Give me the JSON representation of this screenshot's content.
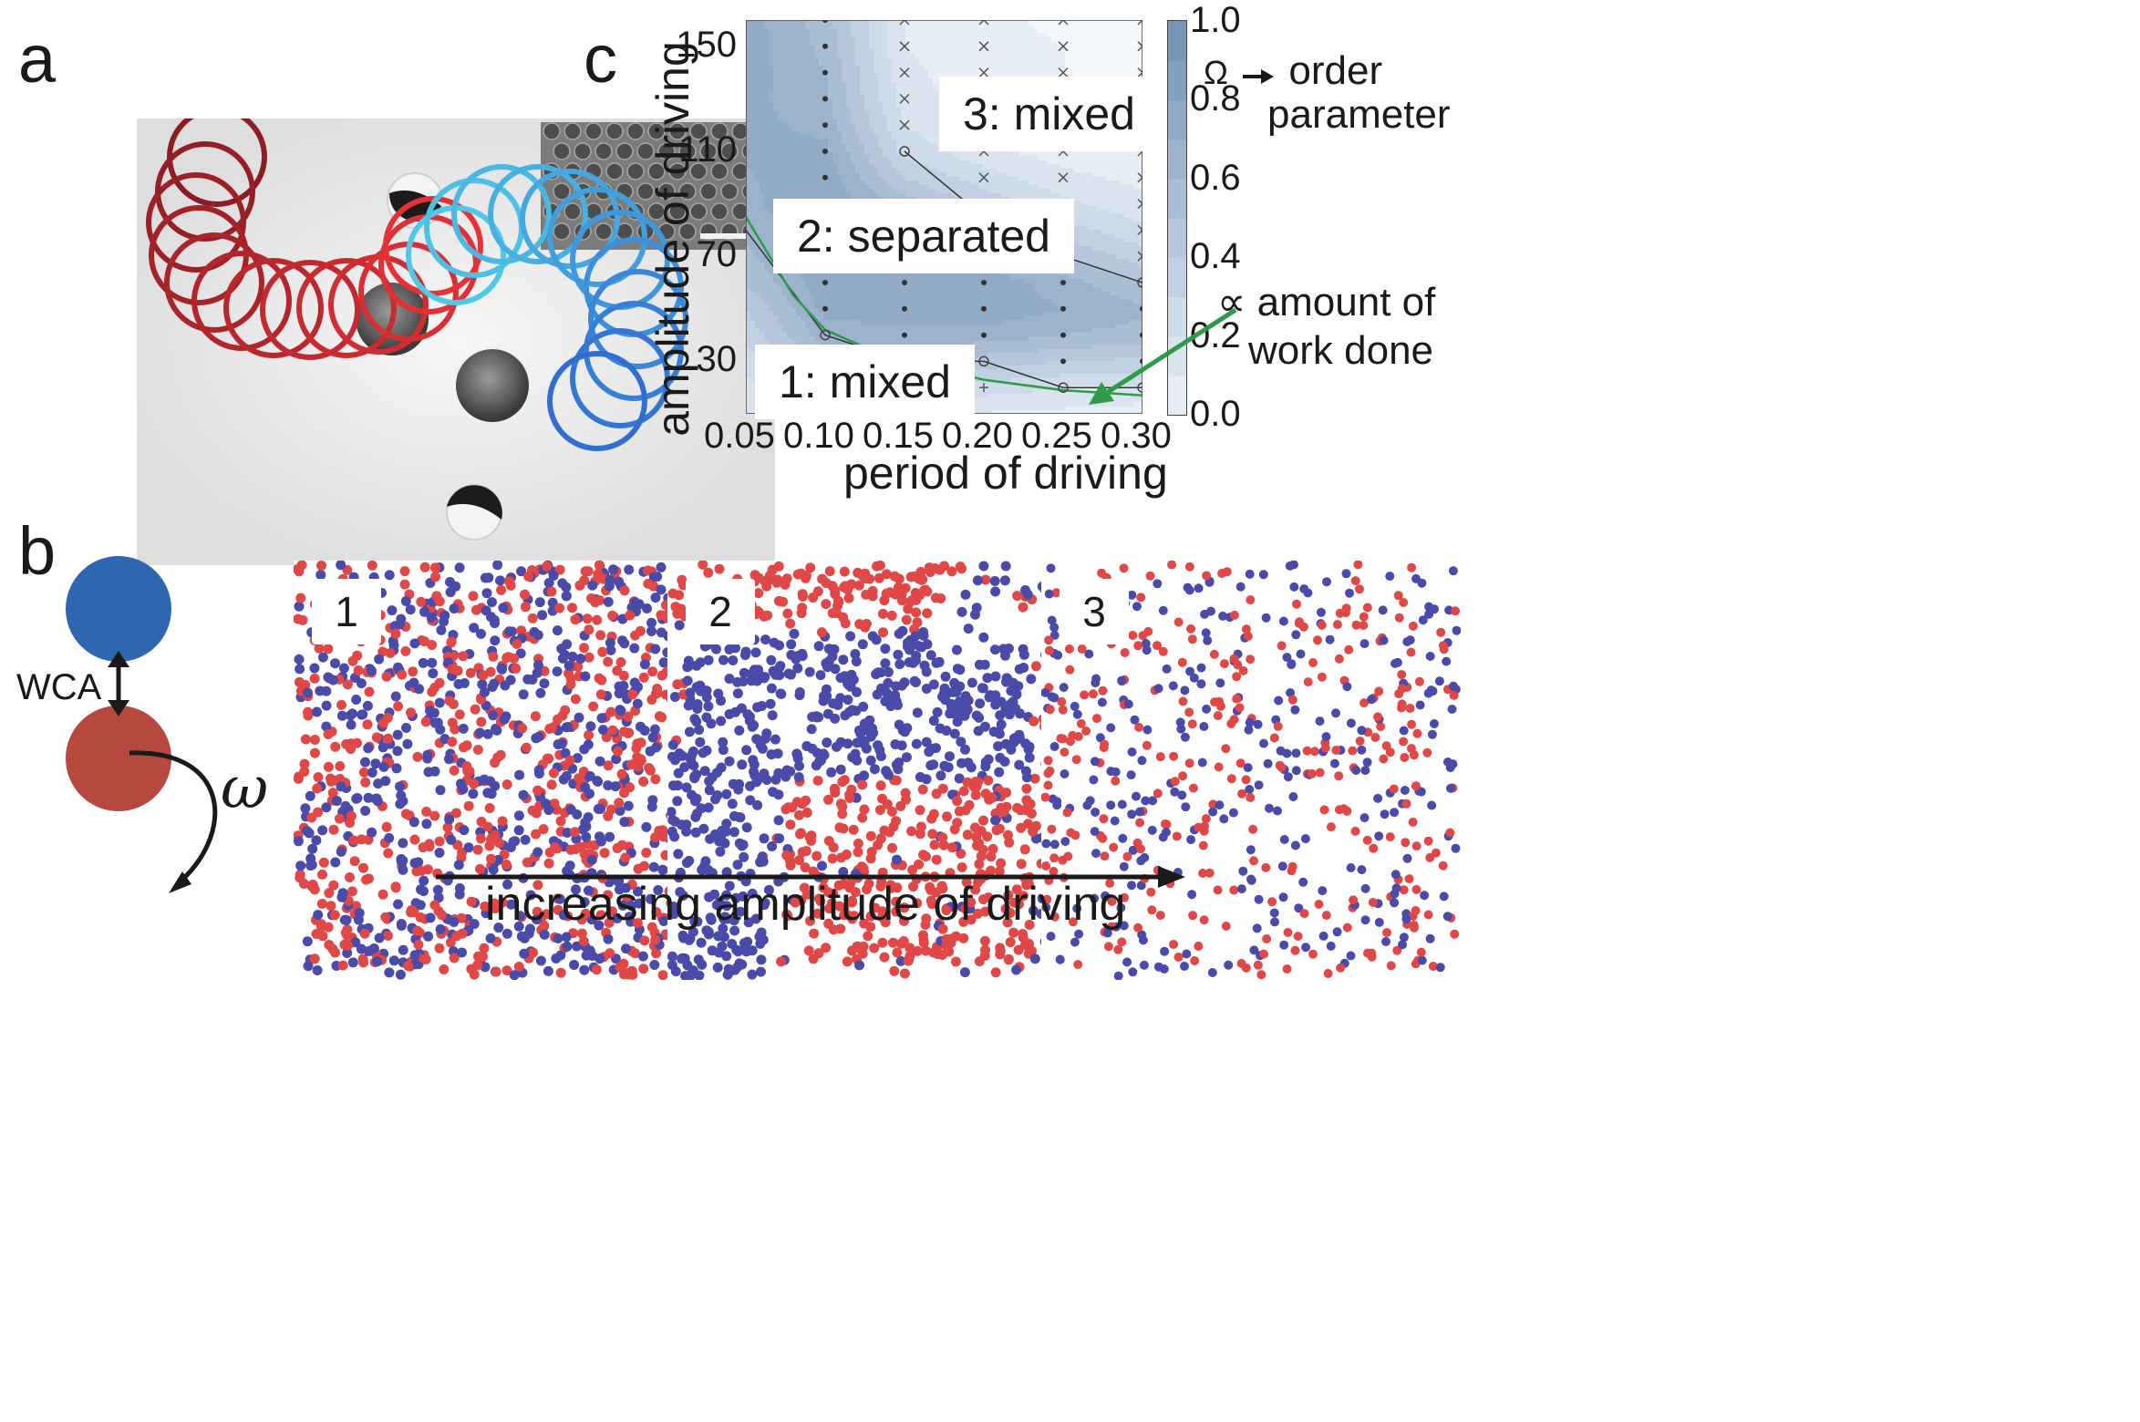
{
  "panels": {
    "a": {
      "letter": "a"
    },
    "b": {
      "letter": "b",
      "interaction_label": "WCA",
      "omega_symbol": "ω",
      "snapshots": [
        {
          "label": "1"
        },
        {
          "label": "2"
        },
        {
          "label": "3"
        }
      ],
      "arrow_caption": "increasing amplitude of driving"
    },
    "c": {
      "letter": "c",
      "colorbar": {
        "ticks": [
          "1.0",
          "0.8",
          "0.6",
          "0.4",
          "0.2",
          "0.0"
        ],
        "omega_symbol": "Ω",
        "label": "order parameter",
        "label_lines": [
          "order",
          "parameter"
        ]
      },
      "work_annotation": {
        "symbol": "∝",
        "lines": [
          "amount of",
          "work done"
        ]
      },
      "regions": [
        "1: mixed",
        "2: separated",
        "3: mixed"
      ]
    }
  },
  "colors": {
    "red_particle": "#e04848",
    "blue_particle": "#4a4aa8",
    "schematic_blue": "#2f66b0",
    "schematic_red": "#b5483f",
    "green_curve": "#2e9a4a",
    "colormap_low": "#f3f8fc",
    "colormap_high": "#7896b8"
  },
  "chart_data": {
    "type": "heatmap",
    "title": "",
    "xlabel": "period of driving",
    "ylabel": "amplitude of driving",
    "x_ticks": [
      "0.05",
      "0.10",
      "0.15",
      "0.20",
      "0.25",
      "0.30"
    ],
    "y_ticks": [
      "30",
      "70",
      "110",
      "150"
    ],
    "xlim": [
      0.05,
      0.3
    ],
    "ylim": [
      10,
      160
    ],
    "colorbar_range": [
      0.0,
      1.0
    ],
    "colorbar_label": "order parameter",
    "grid_x": [
      0.05,
      0.1,
      0.15,
      0.2,
      0.25,
      0.3
    ],
    "grid_y": [
      10,
      20,
      30,
      40,
      50,
      60,
      70,
      80,
      90,
      100,
      110,
      120,
      130,
      140,
      150,
      160
    ],
    "z": [
      [
        0.15,
        0.2,
        0.18,
        0.14,
        0.12,
        0.1
      ],
      [
        0.2,
        0.4,
        0.35,
        0.3,
        0.25,
        0.22
      ],
      [
        0.3,
        0.58,
        0.55,
        0.5,
        0.45,
        0.42
      ],
      [
        0.38,
        0.7,
        0.72,
        0.7,
        0.65,
        0.6
      ],
      [
        0.45,
        0.78,
        0.8,
        0.82,
        0.75,
        0.68
      ],
      [
        0.55,
        0.82,
        0.85,
        0.82,
        0.7,
        0.55
      ],
      [
        0.62,
        0.85,
        0.82,
        0.72,
        0.55,
        0.4
      ],
      [
        0.68,
        0.85,
        0.72,
        0.58,
        0.4,
        0.28
      ],
      [
        0.72,
        0.85,
        0.6,
        0.42,
        0.28,
        0.18
      ],
      [
        0.74,
        0.82,
        0.45,
        0.3,
        0.18,
        0.12
      ],
      [
        0.76,
        0.78,
        0.32,
        0.18,
        0.1,
        0.08
      ],
      [
        0.78,
        0.72,
        0.25,
        0.12,
        0.07,
        0.05
      ],
      [
        0.78,
        0.68,
        0.2,
        0.1,
        0.06,
        0.05
      ],
      [
        0.8,
        0.65,
        0.18,
        0.08,
        0.05,
        0.04
      ],
      [
        0.8,
        0.62,
        0.15,
        0.07,
        0.05,
        0.04
      ],
      [
        0.8,
        0.6,
        0.14,
        0.06,
        0.04,
        0.04
      ]
    ],
    "marker_points": {
      "dots": [
        [
          0.1,
          160
        ],
        [
          0.1,
          150
        ],
        [
          0.1,
          140
        ],
        [
          0.1,
          130
        ],
        [
          0.1,
          120
        ],
        [
          0.1,
          110
        ],
        [
          0.1,
          100
        ],
        [
          0.1,
          90
        ],
        [
          0.1,
          80
        ],
        [
          0.1,
          70
        ],
        [
          0.1,
          60
        ],
        [
          0.1,
          50
        ],
        [
          0.15,
          90
        ],
        [
          0.15,
          80
        ],
        [
          0.15,
          70
        ],
        [
          0.15,
          60
        ],
        [
          0.15,
          50
        ],
        [
          0.15,
          40
        ],
        [
          0.2,
          80
        ],
        [
          0.2,
          70
        ],
        [
          0.2,
          60
        ],
        [
          0.2,
          50
        ],
        [
          0.2,
          40
        ],
        [
          0.25,
          60
        ],
        [
          0.25,
          50
        ],
        [
          0.25,
          40
        ],
        [
          0.25,
          30
        ],
        [
          0.3,
          50
        ],
        [
          0.3,
          40
        ],
        [
          0.3,
          30
        ]
      ],
      "crosses": [
        [
          0.15,
          160
        ],
        [
          0.15,
          150
        ],
        [
          0.15,
          140
        ],
        [
          0.15,
          130
        ],
        [
          0.15,
          120
        ],
        [
          0.2,
          160
        ],
        [
          0.2,
          150
        ],
        [
          0.2,
          140
        ],
        [
          0.2,
          130
        ],
        [
          0.2,
          120
        ],
        [
          0.2,
          110
        ],
        [
          0.2,
          100
        ],
        [
          0.25,
          160
        ],
        [
          0.25,
          150
        ],
        [
          0.25,
          140
        ],
        [
          0.25,
          130
        ],
        [
          0.25,
          120
        ],
        [
          0.25,
          110
        ],
        [
          0.25,
          100
        ],
        [
          0.25,
          90
        ],
        [
          0.25,
          80
        ],
        [
          0.3,
          160
        ],
        [
          0.3,
          150
        ],
        [
          0.3,
          140
        ],
        [
          0.3,
          130
        ],
        [
          0.3,
          120
        ],
        [
          0.3,
          110
        ],
        [
          0.3,
          100
        ],
        [
          0.3,
          90
        ],
        [
          0.3,
          80
        ],
        [
          0.3,
          70
        ]
      ],
      "circles": [
        [
          0.1,
          40
        ],
        [
          0.15,
          30
        ],
        [
          0.2,
          30
        ],
        [
          0.25,
          20
        ],
        [
          0.15,
          110
        ],
        [
          0.25,
          70
        ],
        [
          0.3,
          60
        ],
        [
          0.3,
          20
        ]
      ],
      "pluses": [
        [
          0.2,
          20
        ]
      ]
    },
    "series": [
      {
        "type": "line",
        "x": [
          0.05,
          0.1,
          0.15,
          0.2,
          0.25,
          0.3
        ],
        "y": [
          80,
          40,
          30,
          30,
          20,
          20
        ]
      },
      {
        "type": "line",
        "x": [
          0.15,
          0.2,
          0.25,
          0.3
        ],
        "y": [
          110,
          85,
          70,
          60
        ]
      },
      {
        "type": "line",
        "color": "green",
        "x": [
          0.05,
          0.08,
          0.1,
          0.13,
          0.15,
          0.2,
          0.25,
          0.3
        ],
        "y": [
          85,
          55,
          42,
          34,
          30,
          23,
          19,
          17
        ]
      }
    ]
  }
}
